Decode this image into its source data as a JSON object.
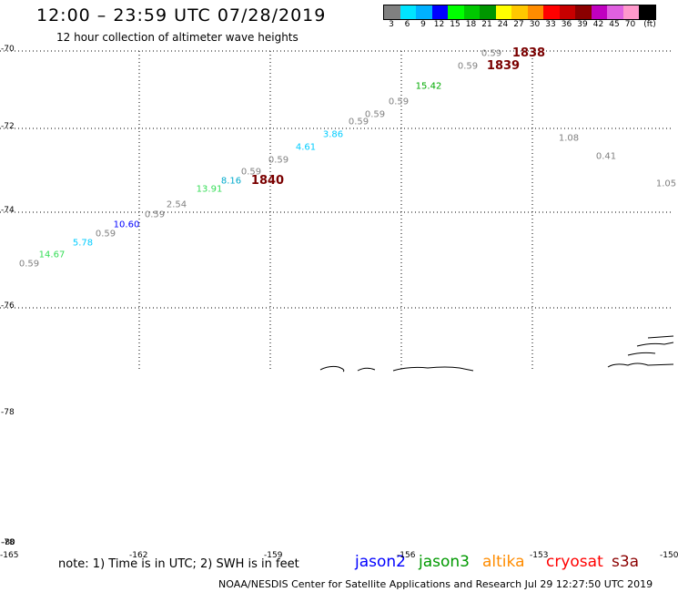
{
  "title": "12:00 – 23:59 UTC 07/28/2019",
  "subtitle": "12 hour collection of altimeter wave heights",
  "colorbar": {
    "colors": [
      "#808080",
      "#00e5ff",
      "#00b0ff",
      "#0000ff",
      "#00ff00",
      "#00c800",
      "#009600",
      "#ffff00",
      "#ffc800",
      "#ff8c00",
      "#ff0000",
      "#c80000",
      "#8b0000",
      "#c000c0",
      "#e060e0",
      "#ff99cc",
      "#000000"
    ],
    "labels": [
      "3",
      "6",
      "9",
      "12",
      "15",
      "18",
      "21",
      "24",
      "27",
      "30",
      "33",
      "36",
      "39",
      "42",
      "45",
      "70",
      "(ft)"
    ]
  },
  "lat_labels": [
    "-70",
    "-72",
    "-74",
    "-76",
    "-78",
    "-78",
    "-80"
  ],
  "lon_labels": [
    "-165",
    "-162",
    "-159",
    "-156",
    "-153",
    "-150"
  ],
  "observations": [
    {
      "v": "0.59",
      "c": "#808080"
    },
    {
      "v": "14.67",
      "c": "#33dd55"
    },
    {
      "v": "5.78",
      "c": "#00ccff"
    },
    {
      "v": "0.59",
      "c": "#808080"
    },
    {
      "v": "10.60",
      "c": "#0000ff"
    },
    {
      "v": "0.59",
      "c": "#808080"
    },
    {
      "v": "2.54",
      "c": "#808080"
    },
    {
      "v": "13.91",
      "c": "#33dd55"
    },
    {
      "v": "8.16",
      "c": "#00aacc"
    },
    {
      "v": "0.59",
      "c": "#808080"
    },
    {
      "v": "0.59",
      "c": "#808080"
    },
    {
      "v": "4.61",
      "c": "#00ccff"
    },
    {
      "v": "3.86",
      "c": "#00ccff"
    },
    {
      "v": "0.59",
      "c": "#808080"
    },
    {
      "v": "0.59",
      "c": "#808080"
    },
    {
      "v": "0.59",
      "c": "#808080"
    },
    {
      "v": "15.42",
      "c": "#00aa00"
    },
    {
      "v": "0.59",
      "c": "#808080"
    },
    {
      "v": "0.59",
      "c": "#808080"
    },
    {
      "v": "1.08",
      "c": "#808080"
    },
    {
      "v": "0.41",
      "c": "#808080"
    },
    {
      "v": "1.05",
      "c": "#808080"
    }
  ],
  "cycles": [
    "1838",
    "1839",
    "1840"
  ],
  "note": "note: 1) Time is in UTC; 2) SWH is in feet",
  "satellites": [
    {
      "name": "jason2",
      "color": "#0000ff"
    },
    {
      "name": "jason3",
      "color": "#009900"
    },
    {
      "name": "altika",
      "color": "#ff8c00"
    },
    {
      "name": "cryosat",
      "color": "#ff0000"
    },
    {
      "name": "s3a",
      "color": "#8b0000"
    }
  ],
  "footer": "NOAA/NESDIS Center for Satellite Applications and Research    Jul 29 12:27:50 UTC 2019"
}
